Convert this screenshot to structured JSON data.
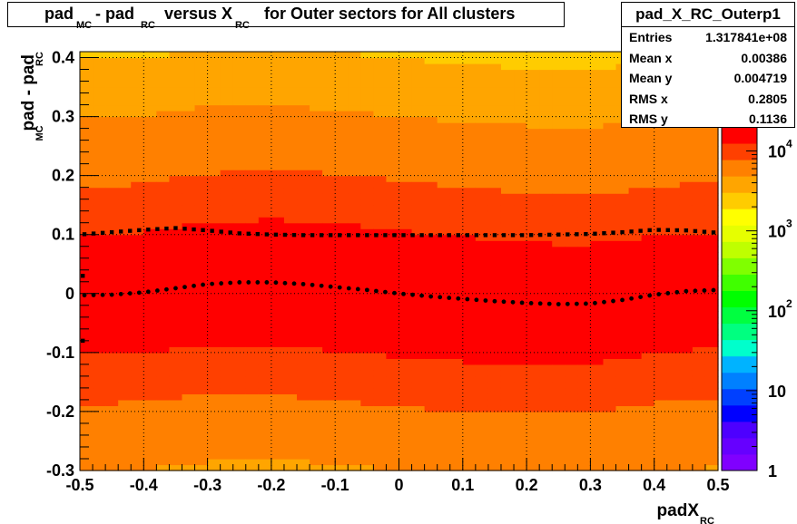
{
  "title": {
    "parts": [
      "pad",
      "- pad",
      "versus X",
      "for Outer sectors for All clusters"
    ],
    "subs": [
      "MC",
      "RC",
      "RC"
    ]
  },
  "stats": {
    "name": "pad_X_RC_Outerp1",
    "rows": [
      {
        "key": "Entries",
        "value": "1.317841e+08"
      },
      {
        "key": "Mean x",
        "value": "0.00386"
      },
      {
        "key": "Mean y",
        "value": "0.004719"
      },
      {
        "key": "RMS x",
        "value": "0.2805"
      },
      {
        "key": "RMS y",
        "value": "0.1136"
      }
    ]
  },
  "colors": {
    "palette": [
      "#8000ff",
      "#6600ff",
      "#4d00ff",
      "#0000ff",
      "#0040ff",
      "#0080ff",
      "#00b3ff",
      "#00ffcc",
      "#00ff80",
      "#00ff40",
      "#00ff00",
      "#40ff00",
      "#80ff00",
      "#bfff00",
      "#e6ff00",
      "#ffff00",
      "#ffcc00",
      "#ffa500",
      "#ff8000",
      "#ff4000",
      "#ff0000"
    ],
    "marker": "#000000"
  },
  "chart_data": {
    "type": "heatmap",
    "x_axis": {
      "label": "padX",
      "label_sub": "RC",
      "range": [
        -0.5,
        0.5
      ],
      "ticks": [
        -0.5,
        -0.4,
        -0.3,
        -0.2,
        -0.1,
        0,
        0.1,
        0.2,
        0.3,
        0.4,
        0.5
      ],
      "tick_labels": [
        "-0.5",
        "-0.4",
        "-0.3",
        "-0.2",
        "-0.1",
        "0",
        "0.1",
        "0.2",
        "0.3",
        "0.4",
        "0.5"
      ]
    },
    "y_axis": {
      "label": "pad - pad",
      "label_subs": [
        "MC",
        "RC"
      ],
      "range": [
        -0.3,
        0.41
      ],
      "ticks": [
        -0.3,
        -0.2,
        -0.1,
        0,
        0.1,
        0.2,
        0.3,
        0.4
      ],
      "tick_labels": [
        "-0.3",
        "-0.2",
        "-0.1",
        "0",
        "0.1",
        "0.2",
        "0.3",
        "0.4"
      ]
    },
    "z_axis": {
      "scale": "log",
      "range": [
        1,
        20000
      ],
      "ticks": [
        1,
        10,
        100,
        1000,
        10000
      ],
      "tick_labels": [
        {
          "base": "1",
          "exp": ""
        },
        {
          "base": "10",
          "exp": ""
        },
        {
          "base": "10",
          "exp": "2"
        },
        {
          "base": "10",
          "exp": "3"
        },
        {
          "base": "10",
          "exp": "4"
        }
      ]
    },
    "grid": true,
    "density_model": {
      "core_sigma": 0.083,
      "tail_sigma": 0.27,
      "tail_weight": 0.5,
      "peak": 18000,
      "ymin_edge": -0.3,
      "ymax_edge": 0.41
    },
    "mean_profile": {
      "x": [
        -0.5,
        -0.45,
        -0.4,
        -0.35,
        -0.3,
        -0.25,
        -0.2,
        -0.15,
        -0.1,
        -0.05,
        0,
        0.05,
        0.1,
        0.15,
        0.2,
        0.25,
        0.3,
        0.35,
        0.4,
        0.45,
        0.5
      ],
      "y": [
        -0.003,
        -0.002,
        0.002,
        0.009,
        0.016,
        0.019,
        0.019,
        0.016,
        0.011,
        0.006,
        0.0,
        -0.005,
        -0.009,
        -0.013,
        -0.016,
        -0.018,
        -0.017,
        -0.011,
        -0.002,
        0.004,
        0.006
      ]
    },
    "rms_profile": {
      "x": [
        -0.5,
        -0.45,
        -0.4,
        -0.35,
        -0.3,
        -0.25,
        -0.2,
        -0.15,
        -0.1,
        -0.05,
        0,
        0.05,
        0.1,
        0.15,
        0.2,
        0.25,
        0.3,
        0.35,
        0.4,
        0.45,
        0.5
      ],
      "y": [
        0.1,
        0.104,
        0.108,
        0.111,
        0.107,
        0.102,
        0.1,
        0.099,
        0.099,
        0.099,
        0.099,
        0.099,
        0.099,
        0.099,
        0.099,
        0.1,
        0.101,
        0.104,
        0.108,
        0.107,
        0.103
      ]
    },
    "edge_points": [
      {
        "x": -0.5,
        "y": 0.03
      },
      {
        "x": -0.5,
        "y": -0.08
      }
    ]
  }
}
